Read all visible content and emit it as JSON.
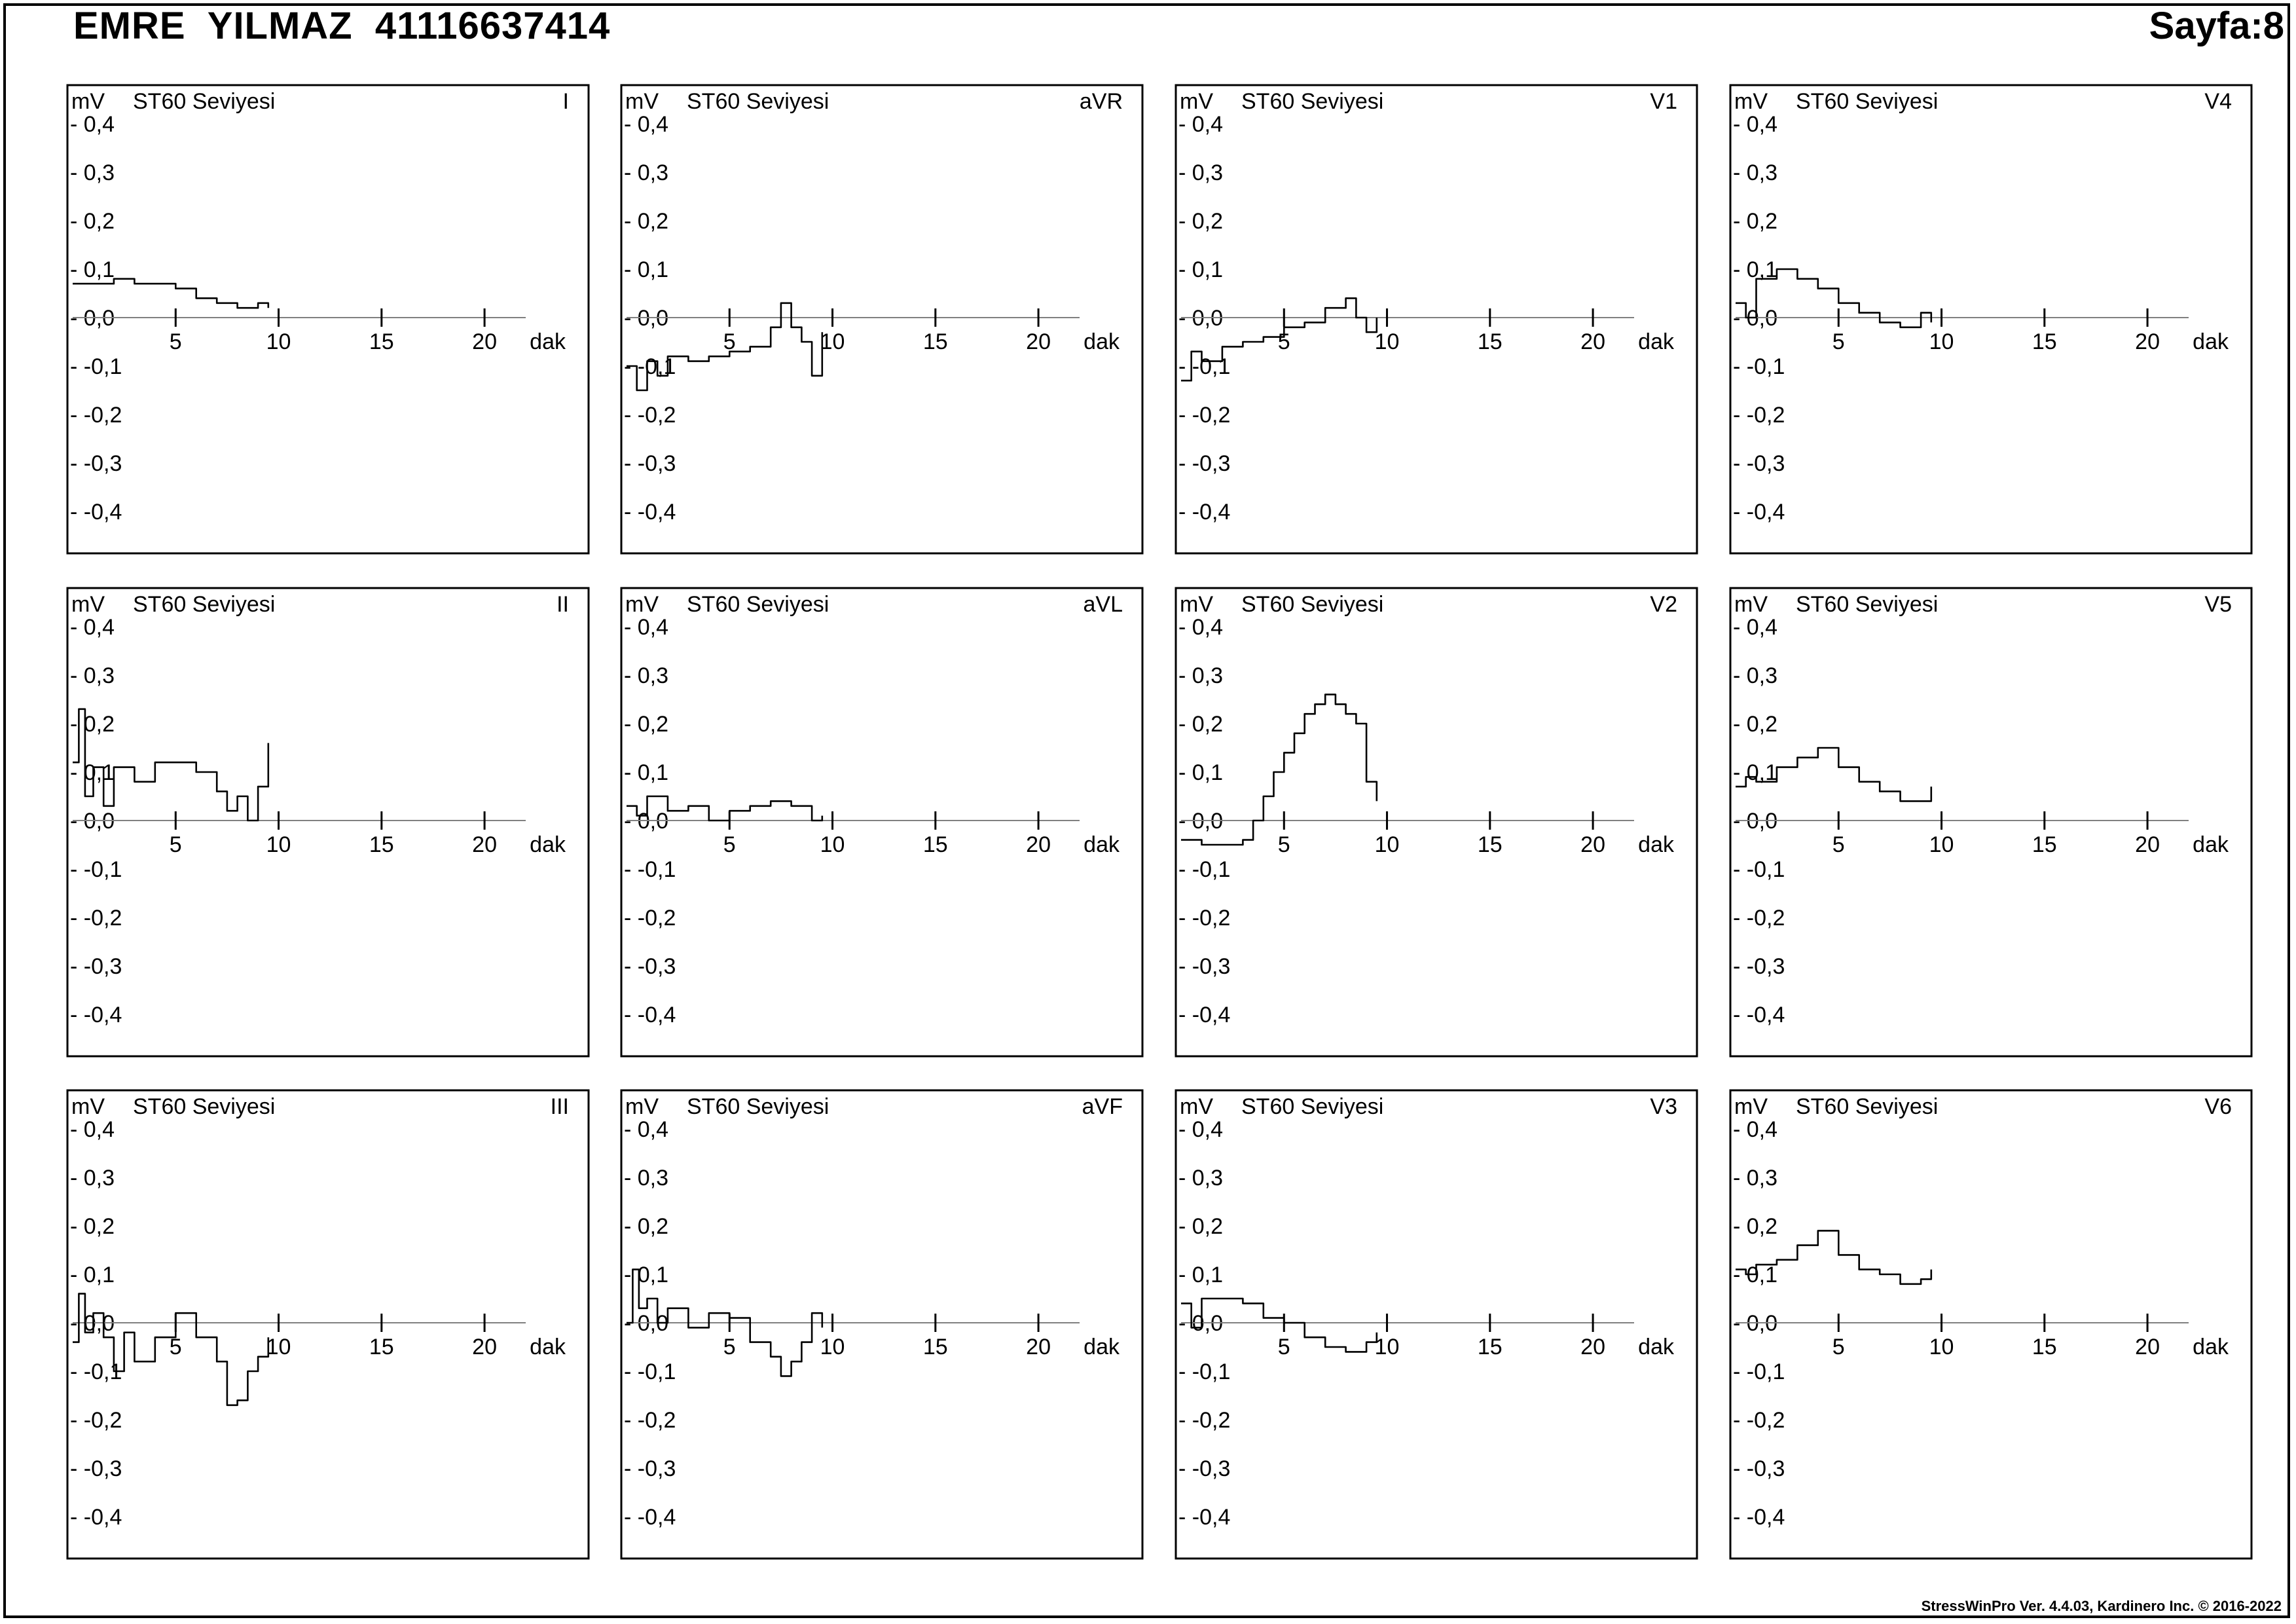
{
  "header": {
    "name": "EMRE  YILMAZ  41116637414",
    "page": "Sayfa:8"
  },
  "footer": "StressWinPro Ver. 4.4.03,  Kardinero Inc. © 2016-2022",
  "chart_common": {
    "unit": "mV",
    "title": "ST60 Seviyesi",
    "x_unit": "dak",
    "y_ticks": [
      0.4,
      0.3,
      0.2,
      0.1,
      0.0,
      -0.1,
      -0.2,
      -0.3,
      -0.4
    ],
    "y_tick_labels": [
      "- 0,4",
      "- 0,3",
      "- 0,2",
      "- 0,1",
      "- 0,0",
      "- -0,1",
      "- -0,2",
      "- -0,3",
      "- -0,4"
    ],
    "x_ticks": [
      5,
      10,
      15,
      20
    ],
    "x_tick_labels": [
      "5",
      "10",
      "15",
      "20"
    ],
    "xlim": [
      0,
      22
    ],
    "ylim": [
      -0.5,
      0.5
    ]
  },
  "chart_data": [
    {
      "type": "line",
      "lead": "I",
      "row": 0,
      "col": 0,
      "x": [
        0,
        1,
        2,
        3,
        4,
        5,
        6,
        7,
        8,
        8.5,
        9,
        9.5
      ],
      "y": [
        0.07,
        0.07,
        0.08,
        0.07,
        0.07,
        0.06,
        0.04,
        0.03,
        0.02,
        0.02,
        0.03,
        0.02
      ]
    },
    {
      "type": "line",
      "lead": "aVR",
      "row": 0,
      "col": 1,
      "x": [
        0,
        0.5,
        1,
        1.5,
        2,
        3,
        4,
        5,
        6,
        7,
        7.5,
        8,
        8.5,
        9,
        9.5
      ],
      "y": [
        -0.1,
        -0.15,
        -0.09,
        -0.12,
        -0.08,
        -0.09,
        -0.08,
        -0.07,
        -0.06,
        -0.02,
        0.03,
        -0.02,
        -0.05,
        -0.12,
        -0.03
      ]
    },
    {
      "type": "line",
      "lead": "V1",
      "row": 0,
      "col": 2,
      "x": [
        0,
        0.5,
        1,
        2,
        3,
        4,
        5,
        6,
        7,
        8,
        8.5,
        9,
        9.5
      ],
      "y": [
        -0.13,
        -0.07,
        -0.09,
        -0.06,
        -0.05,
        -0.04,
        -0.02,
        -0.01,
        0.02,
        0.04,
        0.0,
        -0.03,
        0.0
      ]
    },
    {
      "type": "line",
      "lead": "V4",
      "row": 0,
      "col": 3,
      "x": [
        0,
        0.5,
        1,
        2,
        3,
        4,
        5,
        6,
        7,
        8,
        9,
        9.5
      ],
      "y": [
        0.03,
        0.0,
        0.08,
        0.1,
        0.08,
        0.06,
        0.03,
        0.01,
        -0.01,
        -0.02,
        0.01,
        -0.01
      ]
    },
    {
      "type": "line",
      "lead": "II",
      "row": 1,
      "col": 0,
      "x": [
        0,
        0.3,
        0.6,
        1,
        1.5,
        2,
        3,
        4,
        5,
        6,
        7,
        7.5,
        8,
        8.5,
        9,
        9.5
      ],
      "y": [
        0.12,
        0.23,
        0.05,
        0.11,
        0.03,
        0.11,
        0.08,
        0.12,
        0.12,
        0.1,
        0.06,
        0.02,
        0.05,
        0.0,
        0.07,
        0.16
      ]
    },
    {
      "type": "line",
      "lead": "aVL",
      "row": 1,
      "col": 1,
      "x": [
        0,
        0.5,
        1,
        2,
        3,
        4,
        5,
        6,
        7,
        8,
        9,
        9.5
      ],
      "y": [
        0.03,
        0.01,
        0.05,
        0.02,
        0.03,
        0.0,
        0.02,
        0.03,
        0.04,
        0.03,
        0.0,
        0.01
      ]
    },
    {
      "type": "line",
      "lead": "V2",
      "row": 1,
      "col": 2,
      "x": [
        0,
        1,
        2,
        3,
        3.5,
        4,
        4.5,
        5,
        5.5,
        6,
        6.5,
        7,
        7.5,
        8,
        8.5,
        9,
        9.5
      ],
      "y": [
        -0.04,
        -0.05,
        -0.05,
        -0.04,
        0.0,
        0.05,
        0.1,
        0.14,
        0.18,
        0.22,
        0.24,
        0.26,
        0.24,
        0.22,
        0.2,
        0.08,
        0.04
      ]
    },
    {
      "type": "line",
      "lead": "V5",
      "row": 1,
      "col": 3,
      "x": [
        0,
        0.5,
        1,
        2,
        3,
        4,
        5,
        6,
        7,
        8,
        9,
        9.5
      ],
      "y": [
        0.07,
        0.09,
        0.08,
        0.11,
        0.13,
        0.15,
        0.11,
        0.08,
        0.06,
        0.04,
        0.04,
        0.07
      ]
    },
    {
      "type": "line",
      "lead": "III",
      "row": 2,
      "col": 0,
      "x": [
        0,
        0.3,
        0.6,
        1,
        1.5,
        2,
        2.5,
        3,
        4,
        5,
        6,
        7,
        7.5,
        8,
        8.5,
        9,
        9.5
      ],
      "y": [
        -0.04,
        0.06,
        -0.02,
        0.02,
        -0.03,
        -0.1,
        -0.02,
        -0.08,
        -0.03,
        0.02,
        -0.03,
        -0.08,
        -0.17,
        -0.16,
        -0.1,
        -0.07,
        -0.03
      ]
    },
    {
      "type": "line",
      "lead": "aVF",
      "row": 2,
      "col": 1,
      "x": [
        0,
        0.3,
        0.6,
        1,
        1.5,
        2,
        3,
        4,
        5,
        6,
        7,
        7.5,
        8,
        8.5,
        9,
        9.5
      ],
      "y": [
        0.0,
        0.11,
        0.03,
        0.05,
        0.0,
        0.03,
        -0.01,
        0.02,
        0.01,
        -0.04,
        -0.07,
        -0.11,
        -0.08,
        -0.04,
        0.02,
        -0.01
      ]
    },
    {
      "type": "line",
      "lead": "V3",
      "row": 2,
      "col": 2,
      "x": [
        0,
        0.5,
        1,
        2,
        3,
        4,
        5,
        6,
        7,
        8,
        9,
        9.5
      ],
      "y": [
        0.04,
        -0.01,
        0.05,
        0.05,
        0.04,
        0.01,
        0.0,
        -0.03,
        -0.05,
        -0.06,
        -0.04,
        -0.02
      ]
    },
    {
      "type": "line",
      "lead": "V6",
      "row": 2,
      "col": 3,
      "x": [
        0,
        0.5,
        1,
        2,
        3,
        4,
        5,
        6,
        7,
        8,
        9,
        9.5
      ],
      "y": [
        0.11,
        0.1,
        0.12,
        0.13,
        0.16,
        0.19,
        0.14,
        0.11,
        0.1,
        0.08,
        0.09,
        0.11
      ]
    }
  ]
}
